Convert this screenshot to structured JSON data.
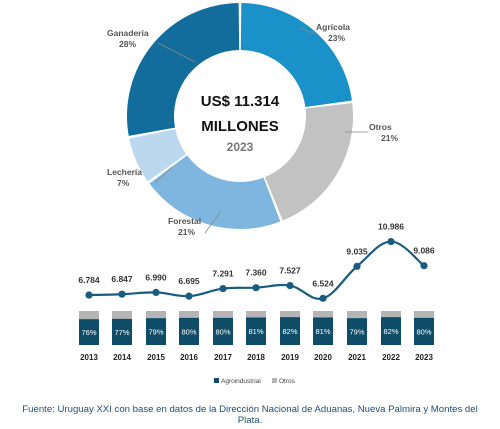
{
  "chart_data": [
    {
      "type": "pie",
      "variant": "donut",
      "center_text": [
        "US$ 11.314",
        "MILLONES",
        "2023"
      ],
      "slices": [
        {
          "label": "Agrícola",
          "value_label": "23%",
          "value": 23,
          "color": "#1a91c8"
        },
        {
          "label": "Otros",
          "value_label": "21%",
          "value": 21,
          "color": "#c2c2c2"
        },
        {
          "label": "Forestal",
          "value_label": "21%",
          "value": 21,
          "color": "#7fb6df"
        },
        {
          "label": "Lechería",
          "value_label": "7%",
          "value": 7,
          "color": "#bcd8ef"
        },
        {
          "label": "Ganadería",
          "value_label": "28%",
          "value": 28,
          "color": "#136d9c"
        }
      ]
    },
    {
      "type": "line",
      "x": [
        "2013",
        "2014",
        "2015",
        "2016",
        "2017",
        "2018",
        "2019",
        "2020",
        "2021",
        "2022",
        "2023"
      ],
      "values": [
        6784,
        6847,
        6990,
        6695,
        7291,
        7360,
        7527,
        6524,
        9035,
        10986,
        9086
      ],
      "labels": [
        "6.784",
        "6.847",
        "6.990",
        "6.695",
        "7.291",
        "7.360",
        "7.527",
        "6.524",
        "9.035",
        "10.986",
        "9.086"
      ],
      "color": "#1a5c80"
    },
    {
      "type": "bar",
      "stacked": true,
      "percent": true,
      "categories": [
        "2013",
        "2014",
        "2015",
        "2016",
        "2017",
        "2018",
        "2019",
        "2020",
        "2021",
        "2022",
        "2023"
      ],
      "series": [
        {
          "name": "Agroindustrial",
          "values": [
            76,
            77,
            79,
            80,
            80,
            81,
            82,
            81,
            79,
            82,
            80
          ],
          "labels": [
            "76%",
            "77%",
            "79%",
            "80%",
            "80%",
            "81%",
            "82%",
            "81%",
            "79%",
            "82%",
            "80%"
          ],
          "color": "#0f4c68"
        },
        {
          "name": "Otros",
          "values": [
            24,
            23,
            21,
            20,
            20,
            19,
            18,
            19,
            21,
            18,
            20
          ],
          "color": "#b5b5b5"
        }
      ],
      "legend_position": "bottom"
    }
  ],
  "footer": "Fuente: Uruguay XXI con base en datos de la Dirección Nacional de Aduanas, Nueva Palmira y Montes del Plata."
}
